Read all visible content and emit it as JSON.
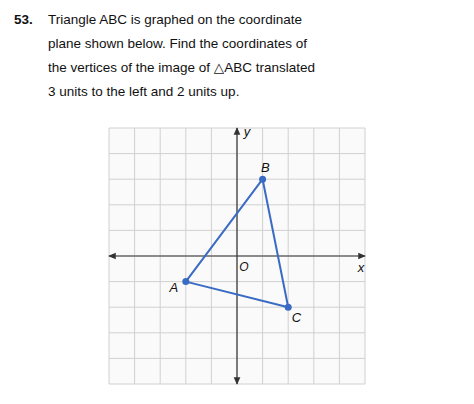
{
  "chart_data": {
    "type": "polygon",
    "title": "53.",
    "subtitle": [
      "Triangle ABC is graphed on the coordinate",
      "plane shown below. Find the coordinates of",
      "the vertices of the image of △ABC translated",
      "3 units to the left and 2 units up."
    ],
    "x": [
      -2,
      1,
      2
    ],
    "values": [
      -1,
      3,
      -2
    ],
    "point_labels": [
      "A",
      "B",
      "C"
    ],
    "color": "#3a6bc4",
    "marker": "circle",
    "line_style": "solid",
    "xlim": [
      -5,
      5
    ],
    "ylim": [
      -5,
      5
    ],
    "xticks": [
      -5,
      -4,
      -3,
      -2,
      -1,
      0,
      1,
      2,
      3,
      4,
      5
    ],
    "yticks": [
      -5,
      -4,
      -3,
      -2,
      -1,
      0,
      1,
      2,
      3,
      4,
      5
    ],
    "grid": true,
    "tick_labels": false,
    "xlabel": "x",
    "ylabel": "y",
    "annotations": [
      {
        "text": "O",
        "x": 0,
        "y": 0
      }
    ]
  }
}
